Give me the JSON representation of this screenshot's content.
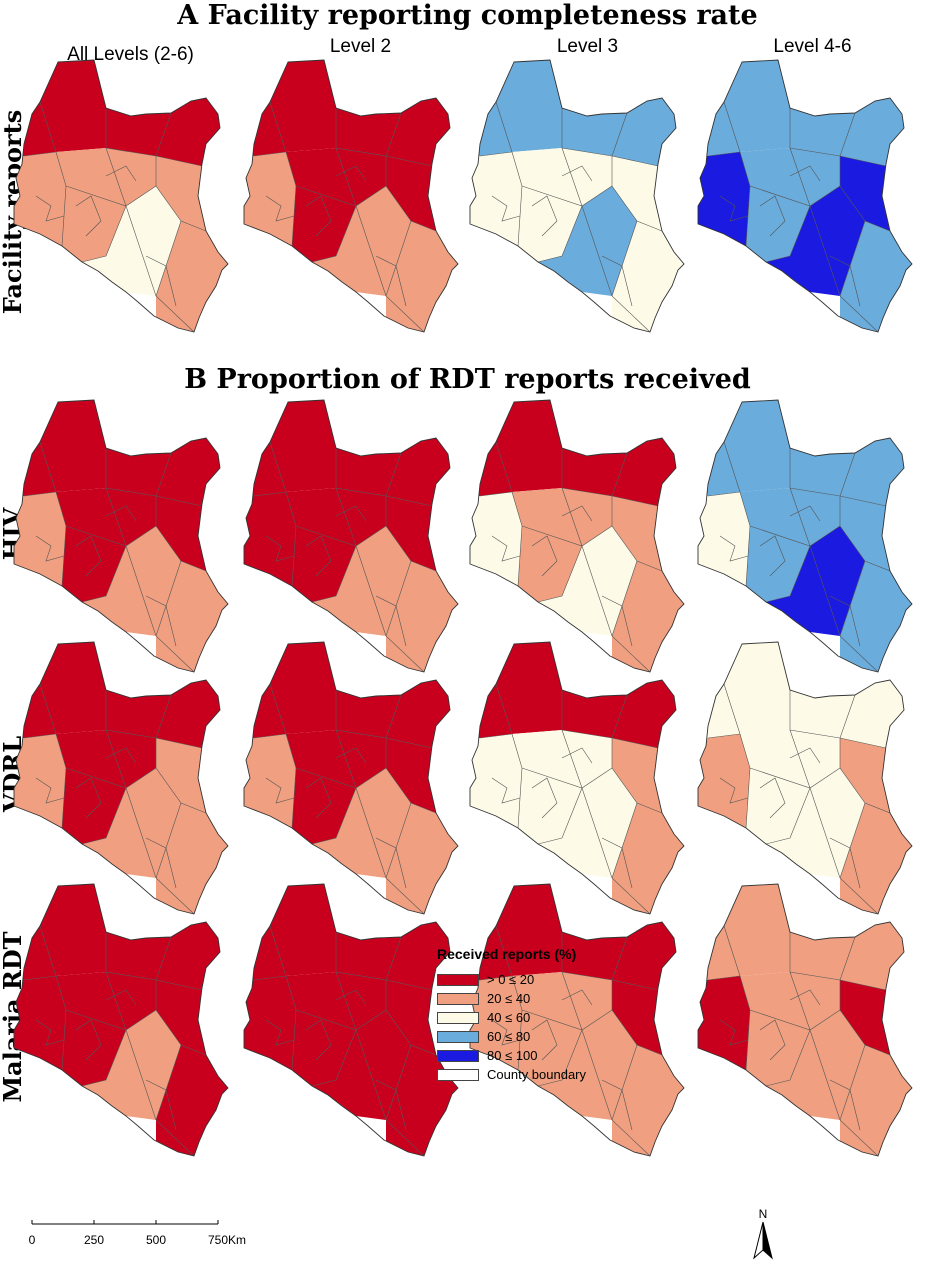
{
  "panel_a_title": "A  Facility reporting completeness rate",
  "panel_b_title": "B  Proportion of RDT reports received",
  "columns": [
    "All Levels (2-6)",
    "Level 2",
    "Level 3",
    "Level 4-6"
  ],
  "rows": [
    "Facility reports",
    "HIV",
    "VDRL",
    "Malaria RDT"
  ],
  "colors": {
    "c1": "#c8001e",
    "c2": "#f0a080",
    "c3": "#fdfbe8",
    "c4": "#6aacdc",
    "c5": "#1a1ae0",
    "boundary": "#555555"
  },
  "maps": [
    {
      "row": "Facility reports",
      "column": "All Levels (2-6)",
      "north": "c1",
      "west": "c2",
      "center": "c2",
      "south": "c3",
      "coast": "c2",
      "east": "c2"
    },
    {
      "row": "Facility reports",
      "column": "Level 2",
      "north": "c1",
      "west": "c2",
      "center": "c1",
      "south": "c2",
      "coast": "c2",
      "east": "c1"
    },
    {
      "row": "Facility reports",
      "column": "Level 3",
      "north": "c4",
      "west": "c3",
      "center": "c3",
      "south": "c4",
      "coast": "c3",
      "east": "c3"
    },
    {
      "row": "Facility reports",
      "column": "Level 4-6",
      "north": "c4",
      "west": "c5",
      "center": "c4",
      "south": "c5",
      "coast": "c4",
      "east": "c5"
    },
    {
      "row": "HIV",
      "column": "All Levels (2-6)",
      "north": "c1",
      "west": "c2",
      "center": "c1",
      "south": "c2",
      "coast": "c2",
      "east": "c1"
    },
    {
      "row": "HIV",
      "column": "Level 2",
      "north": "c1",
      "west": "c1",
      "center": "c1",
      "south": "c2",
      "coast": "c2",
      "east": "c1"
    },
    {
      "row": "HIV",
      "column": "Level 3",
      "north": "c1",
      "west": "c3",
      "center": "c2",
      "south": "c3",
      "coast": "c2",
      "east": "c2"
    },
    {
      "row": "HIV",
      "column": "Level 4-6",
      "north": "c4",
      "west": "c3",
      "center": "c4",
      "south": "c5",
      "coast": "c4",
      "east": "c4"
    },
    {
      "row": "VDRL",
      "column": "All Levels (2-6)",
      "north": "c1",
      "west": "c2",
      "center": "c1",
      "south": "c2",
      "coast": "c2",
      "east": "c2"
    },
    {
      "row": "VDRL",
      "column": "Level 2",
      "north": "c1",
      "west": "c2",
      "center": "c1",
      "south": "c2",
      "coast": "c2",
      "east": "c1"
    },
    {
      "row": "VDRL",
      "column": "Level 3",
      "north": "c1",
      "west": "c3",
      "center": "c3",
      "south": "c3",
      "coast": "c2",
      "east": "c2"
    },
    {
      "row": "VDRL",
      "column": "Level 4-6",
      "north": "c3",
      "west": "c2",
      "center": "c3",
      "south": "c3",
      "coast": "c2",
      "east": "c2"
    },
    {
      "row": "Malaria RDT",
      "column": "All Levels (2-6)",
      "north": "c1",
      "west": "c1",
      "center": "c1",
      "south": "c2",
      "coast": "c1",
      "east": "c1"
    },
    {
      "row": "Malaria RDT",
      "column": "Level 2",
      "north": "c1",
      "west": "c1",
      "center": "c1",
      "south": "c1",
      "coast": "c1",
      "east": "c1"
    },
    {
      "row": "Malaria RDT",
      "column": "Level 3",
      "north": "c1",
      "west": "c2",
      "center": "c2",
      "south": "c2",
      "coast": "c2",
      "east": "c1"
    },
    {
      "row": "Malaria RDT",
      "column": "Level 4-6",
      "north": "c2",
      "west": "c1",
      "center": "c2",
      "south": "c2",
      "coast": "c2",
      "east": "c1"
    }
  ],
  "legend": {
    "title": "Received reports (%)",
    "items": [
      {
        "label": "> 0 ≤ 20",
        "color": "#c8001e"
      },
      {
        "label": "20 ≤ 40",
        "color": "#f0a080"
      },
      {
        "label": "40 ≤ 60",
        "color": "#fdfbe8"
      },
      {
        "label": "60 ≤ 80",
        "color": "#6aacdc"
      },
      {
        "label": "80 ≤ 100",
        "color": "#1a1ae0"
      },
      {
        "label": "County boundary",
        "color": "#ffffff"
      }
    ]
  },
  "scale_bar": {
    "ticks": [
      "0",
      "250",
      "500",
      "750"
    ],
    "unit": "Km"
  },
  "north_arrow": {
    "label": "N"
  }
}
